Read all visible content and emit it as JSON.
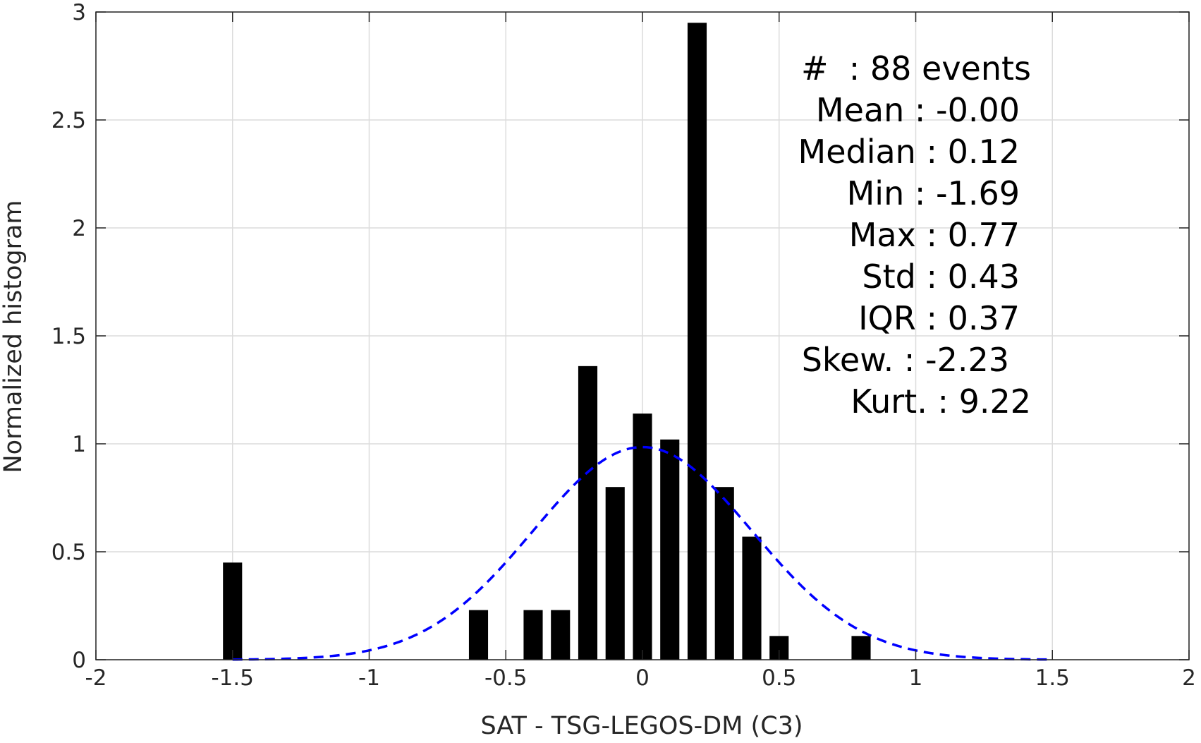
{
  "chart_data": {
    "type": "bar",
    "xlabel": "SAT - TSG-LEGOS-DM (C3)",
    "ylabel": "Normalized histogram",
    "xlim": [
      -2,
      2
    ],
    "ylim": [
      0,
      3
    ],
    "grid": true,
    "bar_width": 0.07,
    "xticks": [
      -2,
      -1.5,
      -1,
      -0.5,
      0,
      0.5,
      1,
      1.5,
      2
    ],
    "xtick_labels": [
      "-2",
      "-1.5",
      "-1",
      "-0.5",
      "0",
      "0.5",
      "1",
      "1.5",
      "2"
    ],
    "yticks": [
      0,
      0.5,
      1,
      1.5,
      2,
      2.5,
      3
    ],
    "ytick_labels": [
      "0",
      "0.5",
      "1",
      "1.5",
      "2",
      "2.5",
      "3"
    ],
    "series": [
      {
        "type": "bar",
        "color": "#000000",
        "x": [
          -1.5,
          -0.6,
          -0.4,
          -0.3,
          -0.2,
          -0.1,
          0.0,
          0.1,
          0.2,
          0.3,
          0.4,
          0.5,
          0.8
        ],
        "values": [
          0.45,
          0.23,
          0.23,
          0.23,
          1.36,
          0.8,
          1.14,
          1.02,
          2.95,
          0.8,
          0.57,
          0.11,
          0.11
        ]
      },
      {
        "type": "line",
        "style": "dashed",
        "color": "#0000ff",
        "fit": "normal",
        "mean": 0.0,
        "std": 0.4,
        "scale": 0.985,
        "x_range": [
          -1.5,
          1.5
        ]
      }
    ],
    "stats": {
      "count": "#  : 88 events",
      "mean": "Mean : -0.00",
      "median": "Median : 0.12",
      "min": "Min : -1.69",
      "max": "Max : 0.77",
      "std": "Std : 0.43",
      "iqr": "IQR : 0.37",
      "skew": "Skew. : -2.23",
      "kurt": "Kurt. : 9.22"
    }
  }
}
